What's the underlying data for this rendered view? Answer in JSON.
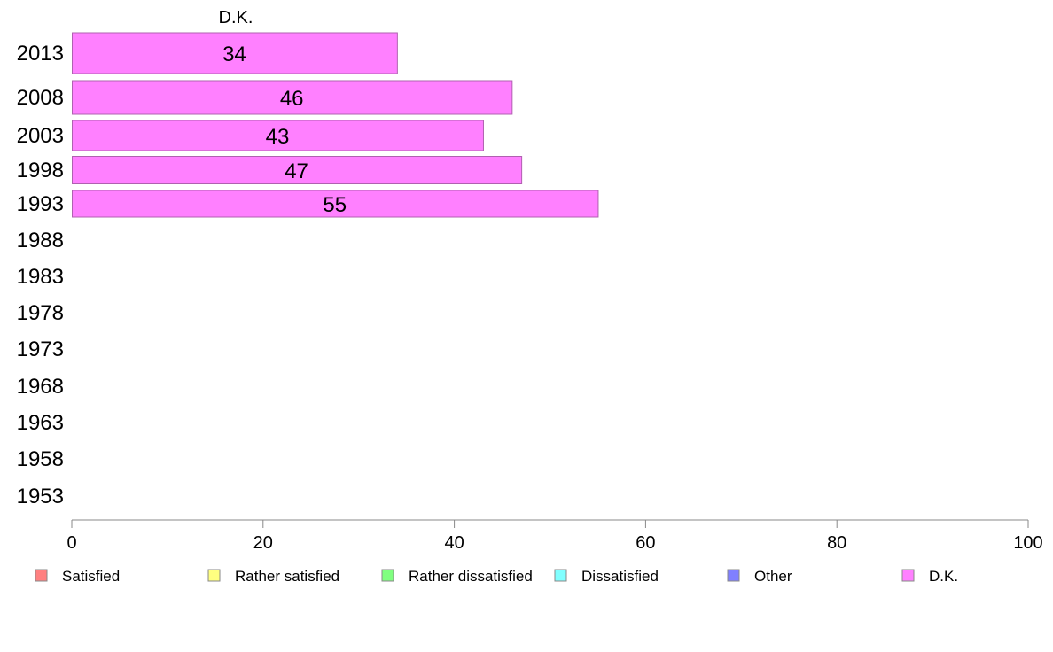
{
  "chart_data": {
    "type": "bar",
    "orientation": "horizontal",
    "series_title": "D.K.",
    "categories": [
      "2013",
      "2008",
      "2003",
      "1998",
      "1993",
      "1988",
      "1983",
      "1978",
      "1973",
      "1968",
      "1963",
      "1958",
      "1953"
    ],
    "series": [
      {
        "name": "D.K.",
        "color": "#ff80ff",
        "values": [
          34,
          46,
          43,
          47,
          55,
          null,
          null,
          null,
          null,
          null,
          null,
          null,
          null
        ]
      }
    ],
    "data_labels": [
      "34",
      "46",
      "43",
      "47",
      "55"
    ],
    "xlim": [
      0,
      100
    ],
    "xticks": [
      0,
      20,
      40,
      60,
      80,
      100
    ],
    "grid": false,
    "legend": {
      "position": "bottom",
      "entries": [
        {
          "label": "Satisfied",
          "color": "#ff8080"
        },
        {
          "label": "Rather satisfied",
          "color": "#ffff80"
        },
        {
          "label": "Rather dissatisfied",
          "color": "#80ff80"
        },
        {
          "label": "Dissatisfied",
          "color": "#80ffff"
        },
        {
          "label": "Other",
          "color": "#8080ff"
        },
        {
          "label": "D.K.",
          "color": "#ff80ff"
        }
      ]
    }
  }
}
